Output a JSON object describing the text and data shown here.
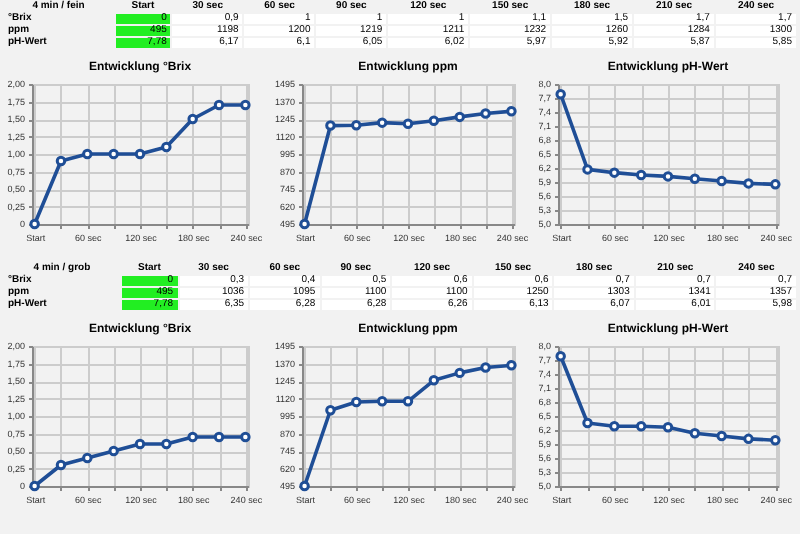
{
  "chart_data": [
    {
      "type": "heatmap",
      "ylabel": "4 min / fein",
      "categories": [
        "Start",
        "30 sec",
        "60 sec",
        "90 sec",
        "120 sec",
        "150 sec",
        "180 sec",
        "210 sec",
        "240 sec"
      ],
      "y_categories": [
        "°Brix",
        "ppm",
        "pH-Wert"
      ],
      "cells": [
        [
          0,
          0.9,
          1,
          1,
          1,
          1.1,
          1.5,
          1.7,
          1.7
        ],
        [
          495,
          1198,
          1200,
          1219,
          1211,
          1232,
          1260,
          1284,
          1300
        ],
        [
          7.78,
          6.17,
          6.1,
          6.05,
          6.02,
          5.97,
          5.92,
          5.87,
          5.85
        ]
      ],
      "cell_labels": [
        [
          "0",
          "0,9",
          "1",
          "1",
          "1",
          "1,1",
          "1,5",
          "1,7",
          "1,7"
        ],
        [
          "495",
          "1198",
          "1200",
          "1219",
          "1211",
          "1232",
          "1260",
          "1284",
          "1300"
        ],
        [
          "7,78",
          "6,17",
          "6,1",
          "6,05",
          "6,02",
          "5,97",
          "5,92",
          "5,87",
          "5,85"
        ]
      ]
    },
    {
      "type": "line",
      "title": "Entwicklung °Brix",
      "categories": [
        "Start",
        null,
        "60 sec",
        null,
        "120 sec",
        null,
        "180 sec",
        null,
        "240 sec"
      ],
      "values": [
        0,
        0.9,
        1,
        1,
        1,
        1.1,
        1.5,
        1.7,
        1.7
      ],
      "color": "#1f4e96",
      "marker": "circle",
      "grid": true,
      "ylim": [
        0,
        2
      ],
      "yticks": [
        {
          "value": 0,
          "label": "0"
        },
        {
          "value": 0.25,
          "label": "0,25"
        },
        {
          "value": 0.5,
          "label": "0,50"
        },
        {
          "value": 0.75,
          "label": "0,75"
        },
        {
          "value": 1,
          "label": "1,00"
        },
        {
          "value": 1.25,
          "label": "1,25"
        },
        {
          "value": 1.5,
          "label": "1,50"
        },
        {
          "value": 1.75,
          "label": "1,75"
        },
        {
          "value": 2,
          "label": "2,00"
        }
      ]
    },
    {
      "type": "line",
      "title": "Entwicklung ppm",
      "categories": [
        "Start",
        null,
        "60 sec",
        null,
        "120 sec",
        null,
        "180 sec",
        null,
        "240 sec"
      ],
      "values": [
        495,
        1198,
        1200,
        1219,
        1211,
        1232,
        1260,
        1284,
        1300
      ],
      "color": "#1f4e96",
      "marker": "circle",
      "grid": true,
      "ylim": [
        495,
        1495
      ],
      "yticks": [
        495,
        620,
        745,
        870,
        995,
        1120,
        1245,
        1370,
        1495
      ]
    },
    {
      "type": "line",
      "title": "Entwicklung pH-Wert",
      "categories": [
        "Start",
        null,
        "60 sec",
        null,
        "120 sec",
        null,
        "180 sec",
        null,
        "240 sec"
      ],
      "values": [
        7.78,
        6.17,
        6.1,
        6.05,
        6.02,
        5.97,
        5.92,
        5.87,
        5.85
      ],
      "color": "#1f4e96",
      "marker": "circle",
      "grid": true,
      "ylim": [
        5,
        8
      ],
      "yticks": [
        {
          "value": 5,
          "label": "5,0"
        },
        {
          "value": 5.3,
          "label": "5,3"
        },
        {
          "value": 5.6,
          "label": "5,6"
        },
        {
          "value": 5.9,
          "label": "5,9"
        },
        {
          "value": 6.2,
          "label": "6,2"
        },
        {
          "value": 6.5,
          "label": "6,5"
        },
        {
          "value": 6.8,
          "label": "6,8"
        },
        {
          "value": 7.1,
          "label": "7,1"
        },
        {
          "value": 7.4,
          "label": "7,4"
        },
        {
          "value": 7.7,
          "label": "7,7"
        },
        {
          "value": 8,
          "label": "8,0"
        }
      ]
    },
    {
      "type": "heatmap",
      "ylabel": "4 min / grob",
      "categories": [
        "Start",
        "30 sec",
        "60 sec",
        "90 sec",
        "120 sec",
        "150 sec",
        "180 sec",
        "210 sec",
        "240 sec"
      ],
      "y_categories": [
        "°Brix",
        "ppm",
        "pH-Wert"
      ],
      "cells": [
        [
          0,
          0.3,
          0.4,
          0.5,
          0.6,
          0.6,
          0.7,
          0.7,
          0.7
        ],
        [
          495,
          1036,
          1095,
          1100,
          1100,
          1250,
          1303,
          1341,
          1357
        ],
        [
          7.78,
          6.35,
          6.28,
          6.28,
          6.26,
          6.13,
          6.07,
          6.01,
          5.98
        ]
      ],
      "cell_labels": [
        [
          "0",
          "0,3",
          "0,4",
          "0,5",
          "0,6",
          "0,6",
          "0,7",
          "0,7",
          "0,7"
        ],
        [
          "495",
          "1036",
          "1095",
          "1100",
          "1100",
          "1250",
          "1303",
          "1341",
          "1357"
        ],
        [
          "7,78",
          "6,35",
          "6,28",
          "6,28",
          "6,26",
          "6,13",
          "6,07",
          "6,01",
          "5,98"
        ]
      ]
    },
    {
      "type": "line",
      "title": "Entwicklung °Brix",
      "categories": [
        "Start",
        null,
        "60 sec",
        null,
        "120 sec",
        null,
        "180 sec",
        null,
        "240 sec"
      ],
      "values": [
        0,
        0.3,
        0.4,
        0.5,
        0.6,
        0.6,
        0.7,
        0.7,
        0.7
      ],
      "color": "#1f4e96",
      "marker": "circle",
      "grid": true,
      "ylim": [
        0,
        2
      ],
      "yticks": [
        {
          "value": 0,
          "label": "0"
        },
        {
          "value": 0.25,
          "label": "0,25"
        },
        {
          "value": 0.5,
          "label": "0,50"
        },
        {
          "value": 0.75,
          "label": "0,75"
        },
        {
          "value": 1,
          "label": "1,00"
        },
        {
          "value": 1.25,
          "label": "1,25"
        },
        {
          "value": 1.5,
          "label": "1,50"
        },
        {
          "value": 1.75,
          "label": "1,75"
        },
        {
          "value": 2,
          "label": "2,00"
        }
      ]
    },
    {
      "type": "line",
      "title": "Entwicklung ppm",
      "categories": [
        "Start",
        null,
        "60 sec",
        null,
        "120 sec",
        null,
        "180 sec",
        null,
        "240 sec"
      ],
      "values": [
        495,
        1036,
        1095,
        1100,
        1100,
        1250,
        1303,
        1341,
        1357
      ],
      "color": "#1f4e96",
      "marker": "circle",
      "grid": true,
      "ylim": [
        495,
        1495
      ],
      "yticks": [
        495,
        620,
        745,
        870,
        995,
        1120,
        1245,
        1370,
        1495
      ]
    },
    {
      "type": "line",
      "title": "Entwicklung pH-Wert",
      "categories": [
        "Start",
        null,
        "60 sec",
        null,
        "120 sec",
        null,
        "180 sec",
        null,
        "240 sec"
      ],
      "values": [
        7.78,
        6.35,
        6.28,
        6.28,
        6.26,
        6.13,
        6.07,
        6.01,
        5.98
      ],
      "color": "#1f4e96",
      "marker": "circle",
      "grid": true,
      "ylim": [
        5,
        8
      ],
      "yticks": [
        {
          "value": 5,
          "label": "5,0"
        },
        {
          "value": 5.3,
          "label": "5,3"
        },
        {
          "value": 5.6,
          "label": "5,6"
        },
        {
          "value": 5.9,
          "label": "5,9"
        },
        {
          "value": 6.2,
          "label": "6,2"
        },
        {
          "value": 6.5,
          "label": "6,5"
        },
        {
          "value": 6.8,
          "label": "6,8"
        },
        {
          "value": 7.1,
          "label": "7,1"
        },
        {
          "value": 7.4,
          "label": "7,4"
        },
        {
          "value": 7.7,
          "label": "7,7"
        },
        {
          "value": 8,
          "label": "8,0"
        }
      ]
    }
  ]
}
